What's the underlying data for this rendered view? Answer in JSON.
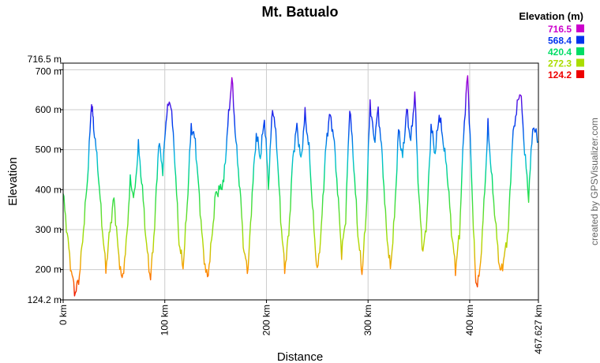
{
  "chart_data": {
    "type": "line",
    "title": "Mt. Batualo",
    "xlabel": "Distance",
    "ylabel": "Elevation",
    "xlim": [
      0,
      467.627
    ],
    "ylim": [
      124.2,
      716.5
    ],
    "grid": true,
    "x_ticks": [
      {
        "value": 0,
        "label": "0 km"
      },
      {
        "value": 100,
        "label": "100 km"
      },
      {
        "value": 200,
        "label": "200 km"
      },
      {
        "value": 300,
        "label": "300 km"
      },
      {
        "value": 400,
        "label": "400 km"
      },
      {
        "value": 467.627,
        "label": "467.627 km"
      }
    ],
    "y_ticks": [
      {
        "value": 124.2,
        "label": "124.2 m"
      },
      {
        "value": 200,
        "label": "200 m"
      },
      {
        "value": 300,
        "label": "300 m"
      },
      {
        "value": 400,
        "label": "400 m"
      },
      {
        "value": 500,
        "label": "500 m"
      },
      {
        "value": 600,
        "label": "600 m"
      },
      {
        "value": 700,
        "label": "700 m"
      },
      {
        "value": 716.5,
        "label": "716.5 m"
      }
    ],
    "legend": {
      "title": "Elevation (m)",
      "position": "top-right",
      "entries": [
        {
          "label": "716.5",
          "color": "#cc00cc"
        },
        {
          "label": "568.4",
          "color": "#0033ee"
        },
        {
          "label": "420.4",
          "color": "#00dd66"
        },
        {
          "label": "272.3",
          "color": "#aadd00"
        },
        {
          "label": "124.2",
          "color": "#ee0000"
        }
      ]
    },
    "series": [
      {
        "x": [
          0,
          4,
          8,
          12,
          16,
          20,
          24,
          28,
          30,
          34,
          38,
          42,
          46,
          50,
          54,
          58,
          62,
          66,
          70,
          74,
          78,
          82,
          86,
          90,
          94,
          98,
          102,
          106,
          110,
          114,
          118,
          122,
          126,
          130,
          134,
          138,
          142,
          146,
          150,
          154,
          158,
          162,
          166,
          170,
          174,
          178,
          182,
          186,
          190,
          194,
          198,
          202,
          206,
          210,
          214,
          218,
          222,
          226,
          230,
          234,
          238,
          242,
          246,
          250,
          254,
          258,
          262,
          266,
          270,
          274,
          278,
          282,
          286,
          290,
          294,
          298,
          302,
          306,
          310,
          314,
          318,
          322,
          326,
          330,
          334,
          338,
          342,
          346,
          350,
          354,
          358,
          362,
          366,
          370,
          374,
          378,
          382,
          386,
          390,
          394,
          398,
          402,
          406,
          410,
          414,
          418,
          422,
          426,
          430,
          434,
          438,
          442,
          446,
          450,
          454,
          458,
          462,
          467.627
        ],
        "y": [
          390,
          290,
          195,
          140,
          185,
          300,
          430,
          620,
          560,
          460,
          320,
          200,
          300,
          380,
          250,
          170,
          260,
          420,
          380,
          510,
          400,
          260,
          175,
          310,
          520,
          450,
          600,
          620,
          470,
          270,
          205,
          360,
          560,
          520,
          380,
          240,
          175,
          270,
          390,
          400,
          420,
          560,
          680,
          520,
          400,
          240,
          200,
          390,
          540,
          480,
          580,
          410,
          610,
          520,
          330,
          200,
          290,
          480,
          560,
          470,
          590,
          500,
          330,
          190,
          300,
          490,
          590,
          540,
          400,
          240,
          330,
          610,
          460,
          290,
          190,
          330,
          620,
          520,
          600,
          480,
          300,
          200,
          330,
          550,
          480,
          600,
          520,
          640,
          380,
          240,
          330,
          560,
          490,
          590,
          520,
          440,
          300,
          200,
          290,
          540,
          690,
          420,
          160,
          190,
          360,
          560,
          420,
          300,
          190,
          230,
          300,
          520,
          600,
          650,
          500,
          380,
          560,
          520
        ]
      }
    ]
  },
  "watermark": "created by GPSVisualizer.com"
}
